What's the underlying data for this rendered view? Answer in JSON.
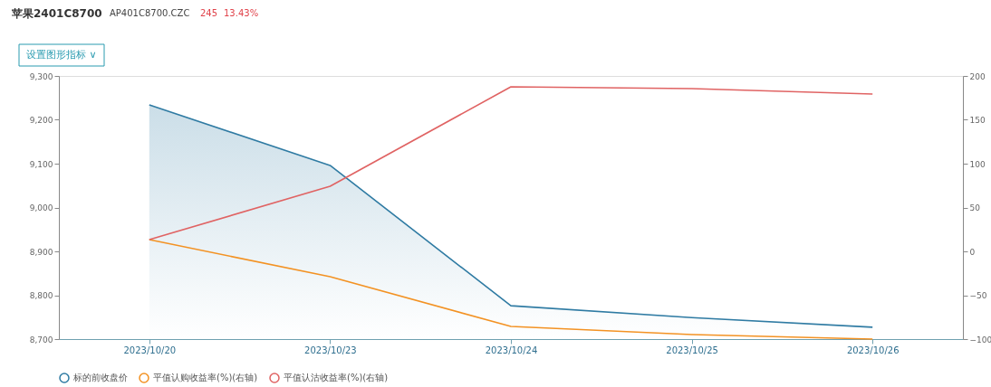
{
  "chart_data": {
    "type": "line",
    "title": "苹果2401C8700",
    "subtitle": "AP401C8700.CZC",
    "annotations": [
      "245",
      "13.43%",
      "设置图形指标 ∨"
    ],
    "categories": [
      "2023/10/20",
      "2023/10/23",
      "2023/10/24",
      "2023/10/25",
      "2023/10/26"
    ],
    "series": [
      {
        "name": "标的前收盘价",
        "type": "area",
        "color": "#2f7ba3",
        "values": [
          9234,
          9096,
          8776,
          8749,
          8727
        ]
      },
      {
        "name": "平值认购收益率(%)(右轴)",
        "type": "line",
        "axis": "y2",
        "color": "#f39223",
        "values": [
          13.4,
          -28.9,
          -85.6,
          -94.9,
          -100
        ]
      },
      {
        "name": "平值认沽收益率(%)(右轴)",
        "type": "line",
        "axis": "y2",
        "color": "#e06363",
        "values": [
          13.4,
          74.2,
          187.6,
          185.6,
          179.4
        ]
      }
    ],
    "ylim": [
      8700,
      9300
    ],
    "yticks": [
      {
        "value": 8700,
        "label": "8,700"
      },
      {
        "value": 8800,
        "label": "8,800"
      },
      {
        "value": 8900,
        "label": "8,900"
      },
      {
        "value": 9000,
        "label": "9,000"
      },
      {
        "value": 9100,
        "label": "9,100"
      },
      {
        "value": 9200,
        "label": "9,200"
      },
      {
        "value": 9300,
        "label": "9,300"
      }
    ],
    "y2lim": [
      -100,
      200
    ],
    "y2ticks": [
      -100,
      -50,
      0,
      50,
      100,
      150,
      200
    ],
    "legend": "bottom",
    "grid": false
  }
}
